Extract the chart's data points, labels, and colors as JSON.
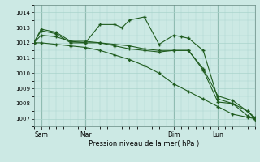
{
  "title": "",
  "xlabel": "Pression niveau de la mer( hPa )",
  "ylabel": "",
  "ylim": [
    1006.5,
    1014.5
  ],
  "xlim": [
    0,
    90
  ],
  "yticks": [
    1007,
    1008,
    1009,
    1010,
    1011,
    1012,
    1013,
    1014
  ],
  "xtick_positions": [
    3,
    21,
    57,
    75
  ],
  "xtick_labels": [
    "Sam",
    "Mar",
    "Dim",
    "Lun"
  ],
  "vline_positions": [
    3,
    21,
    57,
    75
  ],
  "background_color": "#cce9e4",
  "grid_color": "#aad4cc",
  "line_color": "#1f5c1f",
  "series": [
    {
      "x": [
        0,
        3,
        9,
        15,
        21,
        27,
        33,
        39,
        45,
        51,
        57,
        63,
        69,
        75,
        81,
        87,
        90
      ],
      "y": [
        1012.0,
        1012.0,
        1011.9,
        1011.8,
        1011.7,
        1011.5,
        1011.2,
        1010.9,
        1010.5,
        1010.0,
        1009.3,
        1008.8,
        1008.3,
        1007.8,
        1007.3,
        1007.1,
        1007.0
      ]
    },
    {
      "x": [
        0,
        3,
        9,
        15,
        21,
        27,
        33,
        36,
        39,
        45,
        51,
        57,
        60,
        63,
        69,
        75,
        81,
        87,
        90
      ],
      "y": [
        1012.0,
        1012.8,
        1012.6,
        1012.0,
        1012.0,
        1013.2,
        1013.2,
        1013.0,
        1013.5,
        1013.7,
        1011.9,
        1012.5,
        1012.4,
        1012.3,
        1011.5,
        1008.3,
        1008.0,
        1007.2,
        1007.0
      ]
    },
    {
      "x": [
        0,
        3,
        9,
        15,
        21,
        27,
        33,
        39,
        45,
        51,
        57,
        63,
        69,
        75,
        81,
        87,
        90
      ],
      "y": [
        1012.0,
        1012.5,
        1012.4,
        1012.1,
        1012.0,
        1012.0,
        1011.8,
        1011.6,
        1011.5,
        1011.4,
        1011.5,
        1011.5,
        1010.2,
        1008.1,
        1008.0,
        1007.5,
        1007.0
      ]
    },
    {
      "x": [
        0,
        3,
        9,
        15,
        21,
        27,
        33,
        39,
        45,
        51,
        57,
        63,
        69,
        75,
        81,
        87,
        90
      ],
      "y": [
        1012.0,
        1012.9,
        1012.7,
        1012.1,
        1012.1,
        1012.0,
        1011.9,
        1011.8,
        1011.6,
        1011.5,
        1011.5,
        1011.5,
        1010.3,
        1008.5,
        1008.2,
        1007.5,
        1007.1
      ]
    }
  ],
  "figsize": [
    3.2,
    2.0
  ],
  "dpi": 100
}
